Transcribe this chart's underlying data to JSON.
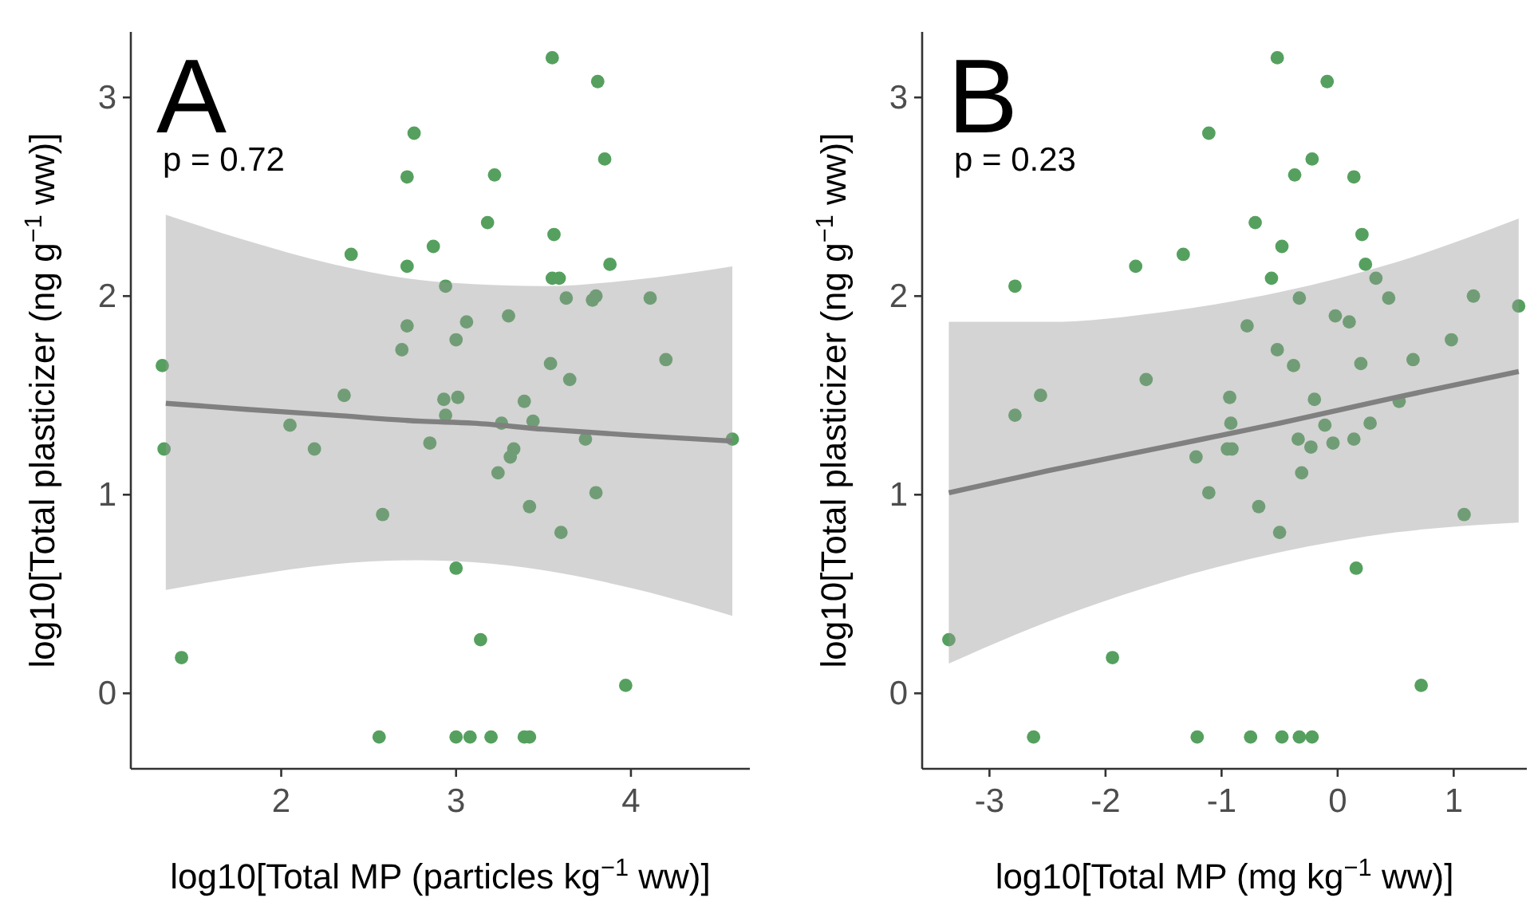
{
  "chart_data": [
    {
      "type": "scatter",
      "title": "A",
      "xlabel": "log10[Total MP (particles kg$^{−1}$ ww)]",
      "ylabel": "log10[Total plasticizer (ng g$^{−1}$ ww)]",
      "xlim": [
        1.14,
        4.68
      ],
      "ylim": [
        -0.38,
        3.33
      ],
      "xticks": [
        2,
        3,
        4
      ],
      "yticks": [
        0,
        1,
        2,
        3
      ],
      "annotations": [
        "p = 0.72"
      ],
      "series": [
        {
          "marker": "circle",
          "color": "#55a05e",
          "x": [
            3.55,
            3.81,
            2.76,
            3.85,
            2.72,
            3.22,
            3.18,
            3.56,
            2.4,
            2.87,
            2.72,
            3.88,
            2.94,
            3.55,
            3.59,
            3.63,
            3.8,
            3.78,
            4.11,
            2.72,
            3.06,
            3.3,
            3.0,
            2.69,
            1.32,
            4.2,
            3.54,
            3.65,
            2.36,
            2.93,
            3.01,
            3.39,
            2.94,
            3.26,
            3.44,
            2.05,
            2.19,
            1.33,
            2.85,
            3.74,
            4.58,
            3.33,
            3.31,
            3.24,
            3.8,
            3.42,
            2.58,
            3.6,
            3.0,
            3.14,
            1.43,
            3.97,
            2.56,
            3.0,
            3.08,
            3.2,
            3.39,
            3.42
          ],
          "values": [
            3.2,
            3.08,
            2.82,
            2.69,
            2.6,
            2.61,
            2.37,
            2.31,
            2.21,
            2.25,
            2.15,
            2.16,
            2.05,
            2.09,
            2.09,
            1.99,
            2.0,
            1.98,
            1.99,
            1.85,
            1.87,
            1.9,
            1.78,
            1.73,
            1.65,
            1.68,
            1.66,
            1.58,
            1.5,
            1.48,
            1.49,
            1.47,
            1.4,
            1.36,
            1.37,
            1.35,
            1.23,
            1.23,
            1.26,
            1.28,
            1.28,
            1.23,
            1.19,
            1.11,
            1.01,
            0.94,
            0.9,
            0.81,
            0.63,
            0.27,
            0.18,
            0.04,
            -0.22,
            -0.22,
            -0.22,
            -0.22,
            -0.22,
            -0.22
          ]
        },
        {
          "type": "line",
          "color": "#808080",
          "x": [
            1.34,
            1.8,
            2.3,
            2.8,
            3.1,
            3.5,
            4.0,
            4.58
          ],
          "values": [
            1.46,
            1.43,
            1.4,
            1.37,
            1.36,
            1.33,
            1.3,
            1.27
          ],
          "lower": [
            0.52,
            0.59,
            0.65,
            0.67,
            0.66,
            0.62,
            0.53,
            0.39
          ],
          "upper": [
            2.41,
            2.28,
            2.16,
            2.08,
            2.06,
            2.05,
            2.08,
            2.15
          ]
        }
      ]
    },
    {
      "type": "scatter",
      "title": "B",
      "xlabel": "log10[Total MP (mg kg$^{−1}$ ww)]",
      "ylabel": "log10[Total plasticizer (ng g$^{−1}$ ww)]",
      "xlim": [
        -3.58,
        1.63
      ],
      "ylim": [
        -0.38,
        3.33
      ],
      "xticks": [
        {
          "value": -3,
          "label": "-3"
        },
        {
          "value": -2,
          "label": "-2"
        },
        {
          "value": -1,
          "label": "-1"
        },
        0,
        1
      ],
      "yticks": [
        0,
        1,
        2,
        3
      ],
      "annotations": [
        "p = 0.23"
      ],
      "series": [
        {
          "marker": "circle",
          "color": "#55a05e",
          "x": [
            -0.52,
            -0.09,
            -1.11,
            -0.22,
            -0.37,
            0.14,
            -0.71,
            0.21,
            -0.48,
            -1.74,
            -1.33,
            0.24,
            -0.57,
            -2.78,
            0.33,
            -0.33,
            0.44,
            1.17,
            1.56,
            -0.02,
            0.1,
            -0.78,
            0.98,
            -0.52,
            -0.38,
            0.2,
            0.65,
            -1.65,
            -2.56,
            -0.93,
            -0.2,
            0.53,
            -2.78,
            -0.92,
            -0.11,
            0.28,
            -0.34,
            0.14,
            -0.23,
            -0.04,
            -0.95,
            -0.91,
            -1.22,
            -0.31,
            -1.11,
            -0.68,
            1.09,
            -0.5,
            0.16,
            -3.35,
            -1.94,
            0.72,
            -2.62,
            -1.21,
            -0.75,
            -0.48,
            -0.33,
            -0.22
          ],
          "values": [
            3.2,
            3.08,
            2.82,
            2.69,
            2.61,
            2.6,
            2.37,
            2.31,
            2.25,
            2.15,
            2.21,
            2.16,
            2.09,
            2.05,
            2.09,
            1.99,
            1.99,
            2.0,
            1.95,
            1.9,
            1.87,
            1.85,
            1.78,
            1.73,
            1.65,
            1.66,
            1.68,
            1.58,
            1.5,
            1.49,
            1.48,
            1.47,
            1.4,
            1.36,
            1.35,
            1.36,
            1.28,
            1.28,
            1.24,
            1.26,
            1.23,
            1.23,
            1.19,
            1.11,
            1.01,
            0.94,
            0.9,
            0.81,
            0.63,
            0.27,
            0.18,
            0.04,
            -0.22,
            -0.22,
            -0.22,
            -0.22,
            -0.22,
            -0.22
          ]
        },
        {
          "type": "line",
          "color": "#808080",
          "x": [
            -3.35,
            -2.5,
            -1.5,
            -0.5,
            0.5,
            1.56
          ],
          "values": [
            1.01,
            1.12,
            1.24,
            1.36,
            1.49,
            1.62
          ],
          "lower": [
            0.15,
            0.36,
            0.56,
            0.71,
            0.81,
            0.86
          ],
          "upper": [
            1.87,
            1.87,
            1.92,
            2.02,
            2.17,
            2.39
          ]
        }
      ]
    }
  ]
}
